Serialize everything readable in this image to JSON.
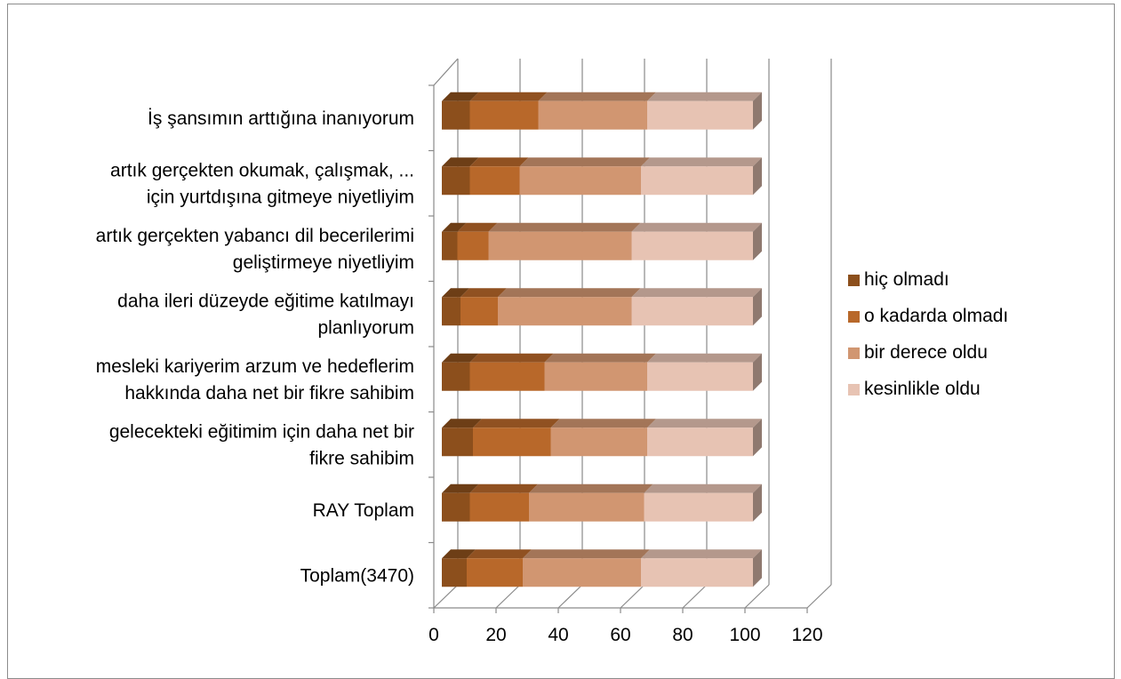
{
  "chart_data": {
    "type": "bar",
    "orientation": "horizontal",
    "stacked": true,
    "three_d": true,
    "categories": [
      "İş şansımın arttığına inanıyorum",
      "artık gerçekten okumak, çalışmak, ... için yurtdışına gitmeye niyetliyim",
      "artık gerçekten yabancı dil becerilerimi geliştirmeye niyetliyim",
      "daha ileri düzeyde eğitime katılmayı planlıyorum",
      "mesleki kariyerim arzum ve hedeflerim hakkında daha net bir fikre sahibim",
      "gelecekteki eğitimim için daha net bir fikre sahibim",
      "RAY Toplam",
      "Toplam(3470)"
    ],
    "category_lines": [
      [
        "İş şansımın arttığına inanıyorum"
      ],
      [
        "artık gerçekten okumak, çalışmak, ...",
        "için yurtdışına gitmeye niyetliyim"
      ],
      [
        "artık gerçekten yabancı dil becerilerimi",
        "geliştirmeye niyetliyim"
      ],
      [
        "daha ileri düzeyde eğitime katılmayı",
        "planlıyorum"
      ],
      [
        "mesleki kariyerim arzum ve hedeflerim",
        "hakkında daha net bir fikre sahibim"
      ],
      [
        "gelecekteki eğitimim için daha net bir",
        "fikre sahibim"
      ],
      [
        "RAY Toplam"
      ],
      [
        "Toplam(3470)"
      ]
    ],
    "series": [
      {
        "name": "hiç olmadı",
        "color": "#8c4f1c",
        "values": [
          9,
          9,
          5,
          6,
          9,
          10,
          9,
          8
        ]
      },
      {
        "name": "o kadarda olmadı",
        "color": "#b8682a",
        "values": [
          22,
          16,
          10,
          12,
          24,
          25,
          19,
          18
        ]
      },
      {
        "name": "bir derece oldu",
        "color": "#d19671",
        "values": [
          35,
          39,
          46,
          43,
          33,
          31,
          37,
          38
        ]
      },
      {
        "name": "kesinlikle oldu",
        "color": "#e7c3b3",
        "values": [
          34,
          36,
          39,
          39,
          34,
          34,
          35,
          36
        ]
      }
    ],
    "xlim": [
      0,
      120
    ],
    "xticks": [
      0,
      20,
      40,
      60,
      80,
      100,
      120
    ],
    "xtick_labels": [
      "0",
      "20",
      "40",
      "60",
      "80",
      "100",
      "120"
    ],
    "title": "",
    "xlabel": "",
    "ylabel": "",
    "grid": true,
    "legend_position": "right"
  }
}
